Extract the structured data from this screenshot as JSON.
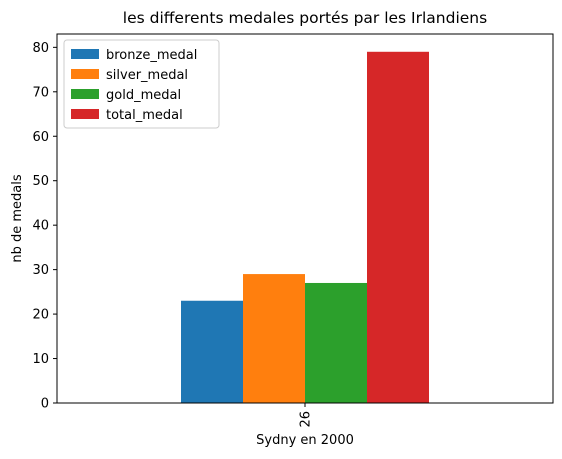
{
  "chart_data": {
    "type": "bar",
    "title": "les differents medales portés par les Irlandiens",
    "xlabel": "Sydny en 2000",
    "ylabel": "nb de medals",
    "categories": [
      "26"
    ],
    "series": [
      {
        "name": "bronze_medal",
        "values": [
          23
        ],
        "color": "#1f77b4"
      },
      {
        "name": "silver_medal",
        "values": [
          29
        ],
        "color": "#ff7f0e"
      },
      {
        "name": "gold_medal",
        "values": [
          27
        ],
        "color": "#2ca02c"
      },
      {
        "name": "total_medal",
        "values": [
          79
        ],
        "color": "#d62728"
      }
    ],
    "ylim": [
      0,
      83
    ],
    "yticks": [
      0,
      10,
      20,
      30,
      40,
      50,
      60,
      70,
      80
    ],
    "grid": false,
    "legend_position": "top-left",
    "xtick_rotation": "vertical"
  }
}
